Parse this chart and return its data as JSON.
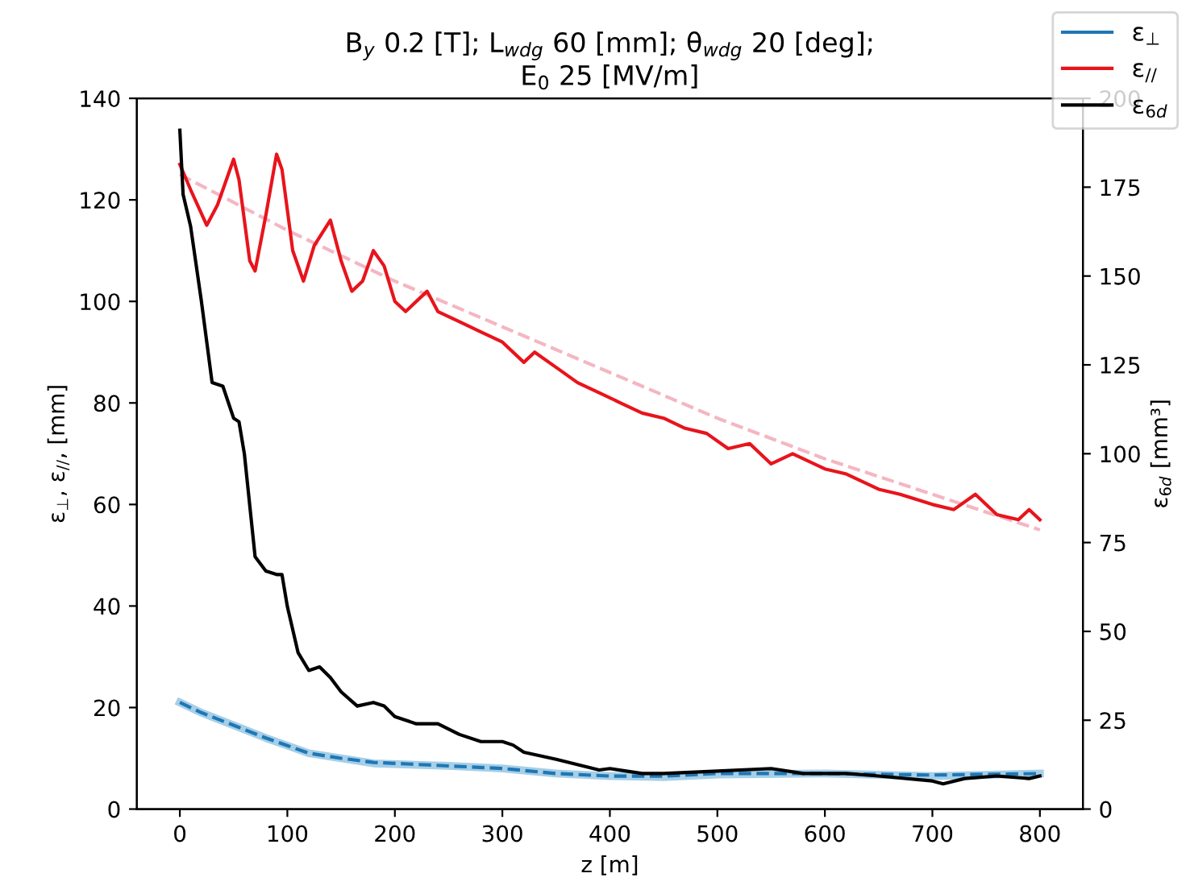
{
  "chart_data": {
    "type": "line",
    "title": "B$_{y}$ 0.2 [T]; L$_{wdg}$ 60 [mm]; θ$_{wdg}$ 20 [deg];\nE$_{0}$ 25 [MV/m]",
    "xlabel": "z [m]",
    "ylabel": "ε$_{⊥}$, ε$_{//}$, [mm]",
    "y2label": "ε$_{6d}$ [mm³]",
    "xlim": [
      -40,
      840
    ],
    "xticks": [
      0,
      100,
      200,
      300,
      400,
      500,
      600,
      700,
      800
    ],
    "ylim": [
      0,
      140
    ],
    "yticks": [
      0,
      20,
      40,
      60,
      80,
      100,
      120,
      140
    ],
    "y2lim": [
      0,
      200
    ],
    "y2ticks": [
      0,
      25,
      50,
      75,
      100,
      125,
      150,
      175,
      200
    ],
    "legend": "top right",
    "grid": false,
    "series": [
      {
        "color": "#a6cfe8",
        "line_style": "solid",
        "x": [
          0,
          20,
          50,
          80,
          100,
          120,
          150,
          180,
          250,
          300,
          350,
          400,
          450,
          500,
          600,
          700,
          800
        ],
        "values": [
          21,
          19,
          16.5,
          14,
          12.5,
          11,
          10,
          9,
          8.5,
          8,
          7,
          6.5,
          6.3,
          6.8,
          7,
          6.5,
          7
        ]
      },
      {
        "name": "ε$_{⊥}$",
        "color": "#1f77b4",
        "line_style": "dashed",
        "x": [
          0,
          20,
          50,
          80,
          100,
          120,
          150,
          180,
          250,
          300,
          350,
          400,
          450,
          500,
          600,
          700,
          800
        ],
        "values": [
          21,
          19,
          16.5,
          14,
          12.5,
          11,
          10,
          9.2,
          8.5,
          8,
          7,
          6.5,
          6.5,
          7,
          7,
          6.7,
          7
        ]
      },
      {
        "color": "#f4b6c2",
        "line_style": "dashed",
        "x": [
          0,
          100,
          200,
          300,
          400,
          500,
          600,
          700,
          800
        ],
        "values": [
          125,
          114,
          104,
          95,
          86,
          77,
          69,
          62,
          55
        ]
      },
      {
        "name": "ε$_{//}$",
        "color": "#e8141c",
        "line_style": "solid",
        "x": [
          0,
          10,
          25,
          35,
          50,
          55,
          65,
          70,
          80,
          90,
          95,
          105,
          115,
          125,
          140,
          150,
          160,
          170,
          180,
          190,
          200,
          210,
          230,
          240,
          260,
          280,
          300,
          320,
          330,
          350,
          370,
          390,
          410,
          430,
          450,
          470,
          490,
          510,
          530,
          550,
          570,
          600,
          620,
          650,
          670,
          700,
          720,
          740,
          760,
          780,
          790,
          800
        ],
        "values": [
          127,
          122,
          115,
          119,
          128,
          124,
          108,
          106,
          117,
          129,
          126,
          110,
          104,
          111,
          116,
          108,
          102,
          104,
          110,
          107,
          100,
          98,
          102,
          98,
          96,
          94,
          92,
          88,
          90,
          87,
          84,
          82,
          80,
          78,
          77,
          75,
          74,
          71,
          72,
          68,
          70,
          67,
          66,
          63,
          62,
          60,
          59,
          62,
          58,
          57,
          59,
          57
        ]
      },
      {
        "name": "ε$_{6d}$",
        "axis": "y2",
        "color": "#000000",
        "line_style": "solid",
        "x": [
          0,
          3,
          10,
          20,
          30,
          40,
          50,
          55,
          60,
          70,
          80,
          90,
          95,
          100,
          110,
          120,
          130,
          140,
          150,
          165,
          180,
          190,
          200,
          220,
          240,
          260,
          280,
          300,
          310,
          320,
          350,
          390,
          400,
          430,
          450,
          500,
          550,
          580,
          620,
          650,
          700,
          710,
          730,
          760,
          790,
          800
        ],
        "values": [
          191,
          173,
          164,
          143,
          120,
          119,
          110,
          109,
          100,
          71,
          67,
          66,
          66,
          57,
          44,
          39,
          40,
          37,
          33,
          29,
          30,
          29,
          26,
          24,
          24,
          21,
          19,
          19,
          18,
          16,
          14,
          11,
          11.4,
          10,
          10,
          10.7,
          11.4,
          10,
          10,
          9.3,
          7.9,
          7.1,
          8.6,
          9.3,
          8.6,
          9.3
        ]
      }
    ]
  }
}
